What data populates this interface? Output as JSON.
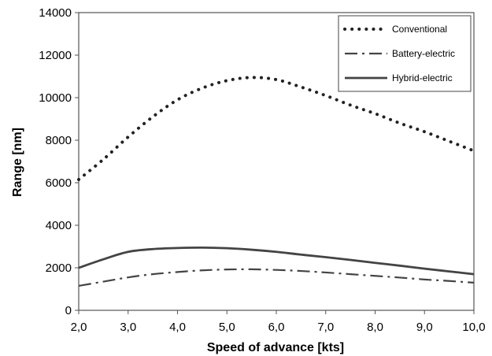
{
  "chart_data": {
    "type": "line",
    "title": "",
    "xlabel": "Speed of advance [kts]",
    "ylabel": "Range [nm]",
    "xlim": [
      2.0,
      10.0
    ],
    "ylim": [
      0,
      14000
    ],
    "x_ticks": [
      "2,0",
      "3,0",
      "4,0",
      "5,0",
      "6,0",
      "7,0",
      "8,0",
      "9,0",
      "10,0"
    ],
    "y_ticks": [
      "0",
      "2000",
      "4000",
      "6000",
      "8000",
      "10000",
      "12000",
      "14000"
    ],
    "grid": false,
    "legend_position": "top-right",
    "x": [
      2.0,
      2.5,
      3.0,
      3.5,
      4.0,
      4.5,
      5.0,
      5.5,
      6.0,
      6.5,
      7.0,
      7.5,
      8.0,
      8.5,
      9.0,
      9.5,
      10.0
    ],
    "series": [
      {
        "name": "Conventional",
        "style": "dotted",
        "color": "#222222",
        "values": [
          6150,
          7100,
          8150,
          9100,
          9900,
          10450,
          10800,
          10950,
          10850,
          10500,
          10100,
          9650,
          9250,
          8800,
          8400,
          7950,
          7500
        ]
      },
      {
        "name": "Battery-electric",
        "style": "dashdot",
        "color": "#444444",
        "values": [
          1150,
          1350,
          1550,
          1700,
          1800,
          1880,
          1920,
          1930,
          1900,
          1850,
          1780,
          1700,
          1620,
          1540,
          1450,
          1380,
          1300
        ]
      },
      {
        "name": "Hybrid-electric",
        "style": "solid",
        "color": "#444444",
        "values": [
          2000,
          2400,
          2750,
          2880,
          2930,
          2950,
          2920,
          2850,
          2750,
          2620,
          2500,
          2370,
          2230,
          2100,
          1960,
          1830,
          1700
        ]
      }
    ]
  }
}
